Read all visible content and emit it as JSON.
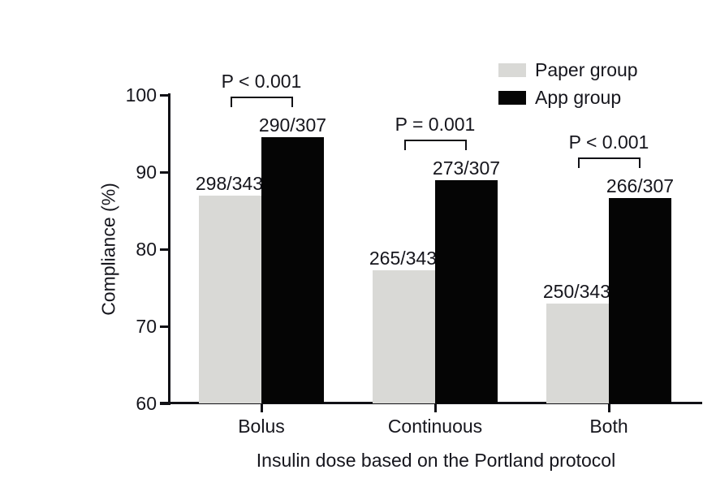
{
  "chart_data": {
    "type": "bar",
    "title": "",
    "categories": [
      "Bolus",
      "Continuous",
      "Both"
    ],
    "series": [
      {
        "name": "Paper group",
        "color": "#d9d9d6",
        "values_pct": [
          86.9,
          77.3,
          72.9
        ],
        "bar_labels": [
          "298/343",
          "265/343",
          "250/343"
        ]
      },
      {
        "name": "App group",
        "color": "#050505",
        "values_pct": [
          94.5,
          88.9,
          86.6
        ],
        "bar_labels": [
          "290/307",
          "273/307",
          "266/307"
        ]
      }
    ],
    "p_values": [
      "P < 0.001",
      "P = 0.001",
      "P < 0.001"
    ],
    "ylabel": "Compliance (%)",
    "xlabel": "Insulin dose based on the Portland protocol",
    "ylim": [
      60,
      100
    ],
    "yticks": [
      60,
      70,
      80,
      90,
      100
    ],
    "grid": false,
    "legend_position": "upper-right",
    "axis_color": "#111116"
  }
}
